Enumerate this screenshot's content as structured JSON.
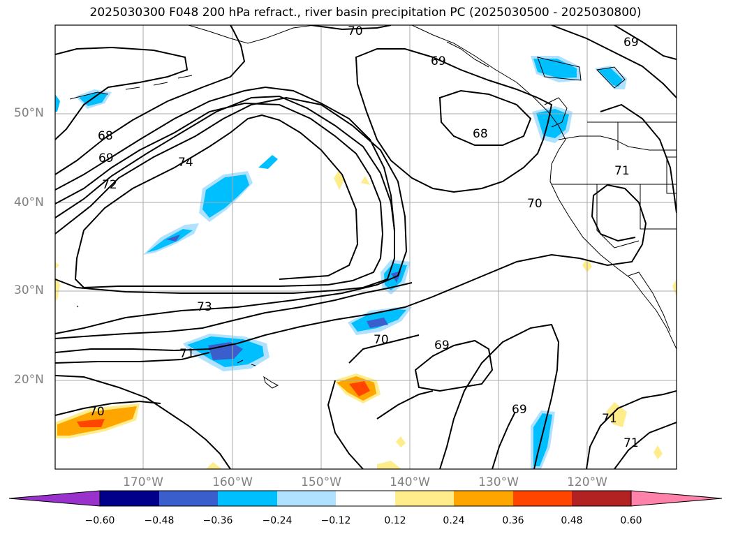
{
  "title": "2025030300 F048 200 hPa refract., river basin precipitation PC (2025030500 - 2025030800)",
  "lat_labels": [
    "50°N",
    "40°N",
    "30°N",
    "20°N"
  ],
  "lon_labels": [
    "170°W",
    "160°W",
    "150°W",
    "140°W",
    "130°W",
    "120°W"
  ],
  "contour_labels": [
    "70",
    "69",
    "69",
    "68",
    "68",
    "69",
    "72",
    "74",
    "71",
    "70",
    "73",
    "71",
    "70",
    "69",
    "69",
    "71",
    "71",
    "70"
  ],
  "colorbar": {
    "ticks": [
      "−0.60",
      "−0.48",
      "−0.36",
      "−0.24",
      "−0.12",
      "0.12",
      "0.24",
      "0.36",
      "0.48",
      "0.60"
    ],
    "colors": [
      "#9932cc",
      "#00008b",
      "#3a5fcd",
      "#00bfff",
      "#b0e2ff",
      "#ffffff",
      "#ffec8b",
      "#ffa500",
      "#ff4500",
      "#b22222",
      "#ff82ab"
    ]
  }
}
